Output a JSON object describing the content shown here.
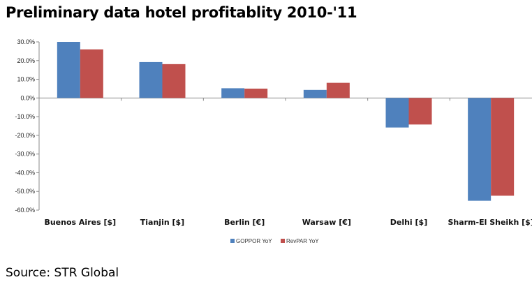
{
  "title": "Preliminary data hotel profitablity 2010-'11",
  "source": "Source: STR Global",
  "chart_data": {
    "type": "bar",
    "categories": [
      "Buenos Aires [$]",
      "Tianjin [$]",
      "Berlin [€]",
      "Warsaw [€]",
      "Delhi [$]",
      "Sharm-El Sheikh [$]"
    ],
    "series": [
      {
        "name": "GOPPOR YoY",
        "color": "#4f81bd",
        "values": [
          30.0,
          19.2,
          5.2,
          4.3,
          -15.8,
          -55.0
        ]
      },
      {
        "name": "RevPAR YoY",
        "color": "#c0504d",
        "values": [
          26.0,
          18.1,
          5.0,
          8.1,
          -14.2,
          -52.3
        ]
      }
    ],
    "ylim": [
      -60,
      30
    ],
    "yticks": [
      30,
      20,
      10,
      0,
      -10,
      -20,
      -30,
      -40,
      -50,
      -60
    ],
    "ytick_labels": [
      "30.0%",
      "20.0%",
      "10.0%",
      "0.0%",
      "-10.0%",
      "-20.0%",
      "-30.0%",
      "-40.0%",
      "-50.0%",
      "-60.0%"
    ],
    "grid": false,
    "legend_position": "bottom"
  }
}
